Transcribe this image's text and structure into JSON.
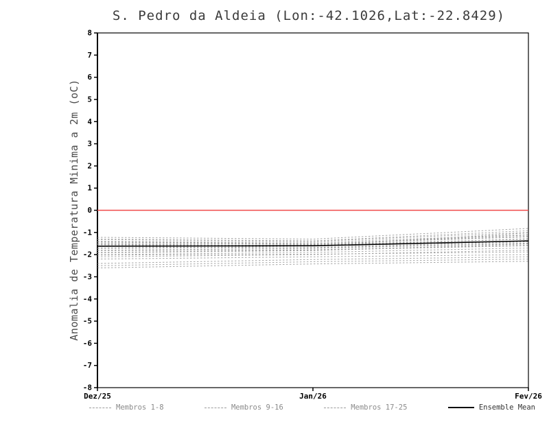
{
  "chart_data": {
    "type": "line",
    "title": "S. Pedro da Aldeia (Lon:-42.1026,Lat:-22.8429)",
    "ylabel": "Anomalia de Temperatura Minima a 2m (oC)",
    "xlabel": "",
    "ylim": [
      -8,
      8
    ],
    "ytick_step": 1,
    "x": [
      0,
      31,
      62
    ],
    "x_tick_labels": [
      "Dez/25",
      "Jan/26",
      "Fev/26"
    ],
    "grid": "off",
    "legend_position": "bottom",
    "axis_color": "#000000",
    "zero_line": {
      "y": 0,
      "color": "#f04848"
    },
    "member_style": {
      "color": "#9b9b9b",
      "dash": "2.5 2.5",
      "width": 1
    },
    "mean_style": {
      "color": "#000000",
      "width": 1.6
    },
    "members": [
      [
        -1.4,
        -1.45,
        -1.1
      ],
      [
        -1.5,
        -1.52,
        -1.2
      ],
      [
        -1.6,
        -1.58,
        -1.3
      ],
      [
        -1.3,
        -1.38,
        -0.92
      ],
      [
        -1.7,
        -1.62,
        -1.4
      ],
      [
        -1.8,
        -1.72,
        -1.5
      ],
      [
        -1.52,
        -1.6,
        -1.02
      ],
      [
        -1.62,
        -1.55,
        -1.3
      ],
      [
        -1.9,
        -1.8,
        -1.6
      ],
      [
        -2.0,
        -1.9,
        -1.7
      ],
      [
        -2.1,
        -2.0,
        -1.8
      ],
      [
        -1.42,
        -1.5,
        -1.18
      ],
      [
        -2.2,
        -2.1,
        -2.0
      ],
      [
        -1.72,
        -1.68,
        -1.42
      ],
      [
        -1.82,
        -1.78,
        -1.58
      ],
      [
        -1.55,
        -1.62,
        -1.28
      ],
      [
        -2.5,
        -2.32,
        -2.2
      ],
      [
        -2.6,
        -2.42,
        -2.3
      ],
      [
        -2.4,
        -2.22,
        -2.1
      ],
      [
        -1.32,
        -1.4,
        -1.0
      ],
      [
        -1.62,
        -1.7,
        -1.48
      ],
      [
        -1.92,
        -1.82,
        -1.52
      ],
      [
        -2.02,
        -1.98,
        -1.88
      ],
      [
        -1.44,
        -1.52,
        -1.12
      ],
      [
        -1.22,
        -1.3,
        -0.82
      ]
    ],
    "mean": [
      -1.62,
      -1.6,
      -1.38
    ],
    "legend": [
      {
        "label": "Membros 1-8",
        "style": "dashed",
        "color": "#9b9b9b"
      },
      {
        "label": "Membros 9-16",
        "style": "dashed",
        "color": "#9b9b9b"
      },
      {
        "label": "Membros 17-25",
        "style": "dashed",
        "color": "#9b9b9b"
      },
      {
        "label": "Ensemble Mean",
        "style": "solid",
        "color": "#000000"
      }
    ]
  }
}
